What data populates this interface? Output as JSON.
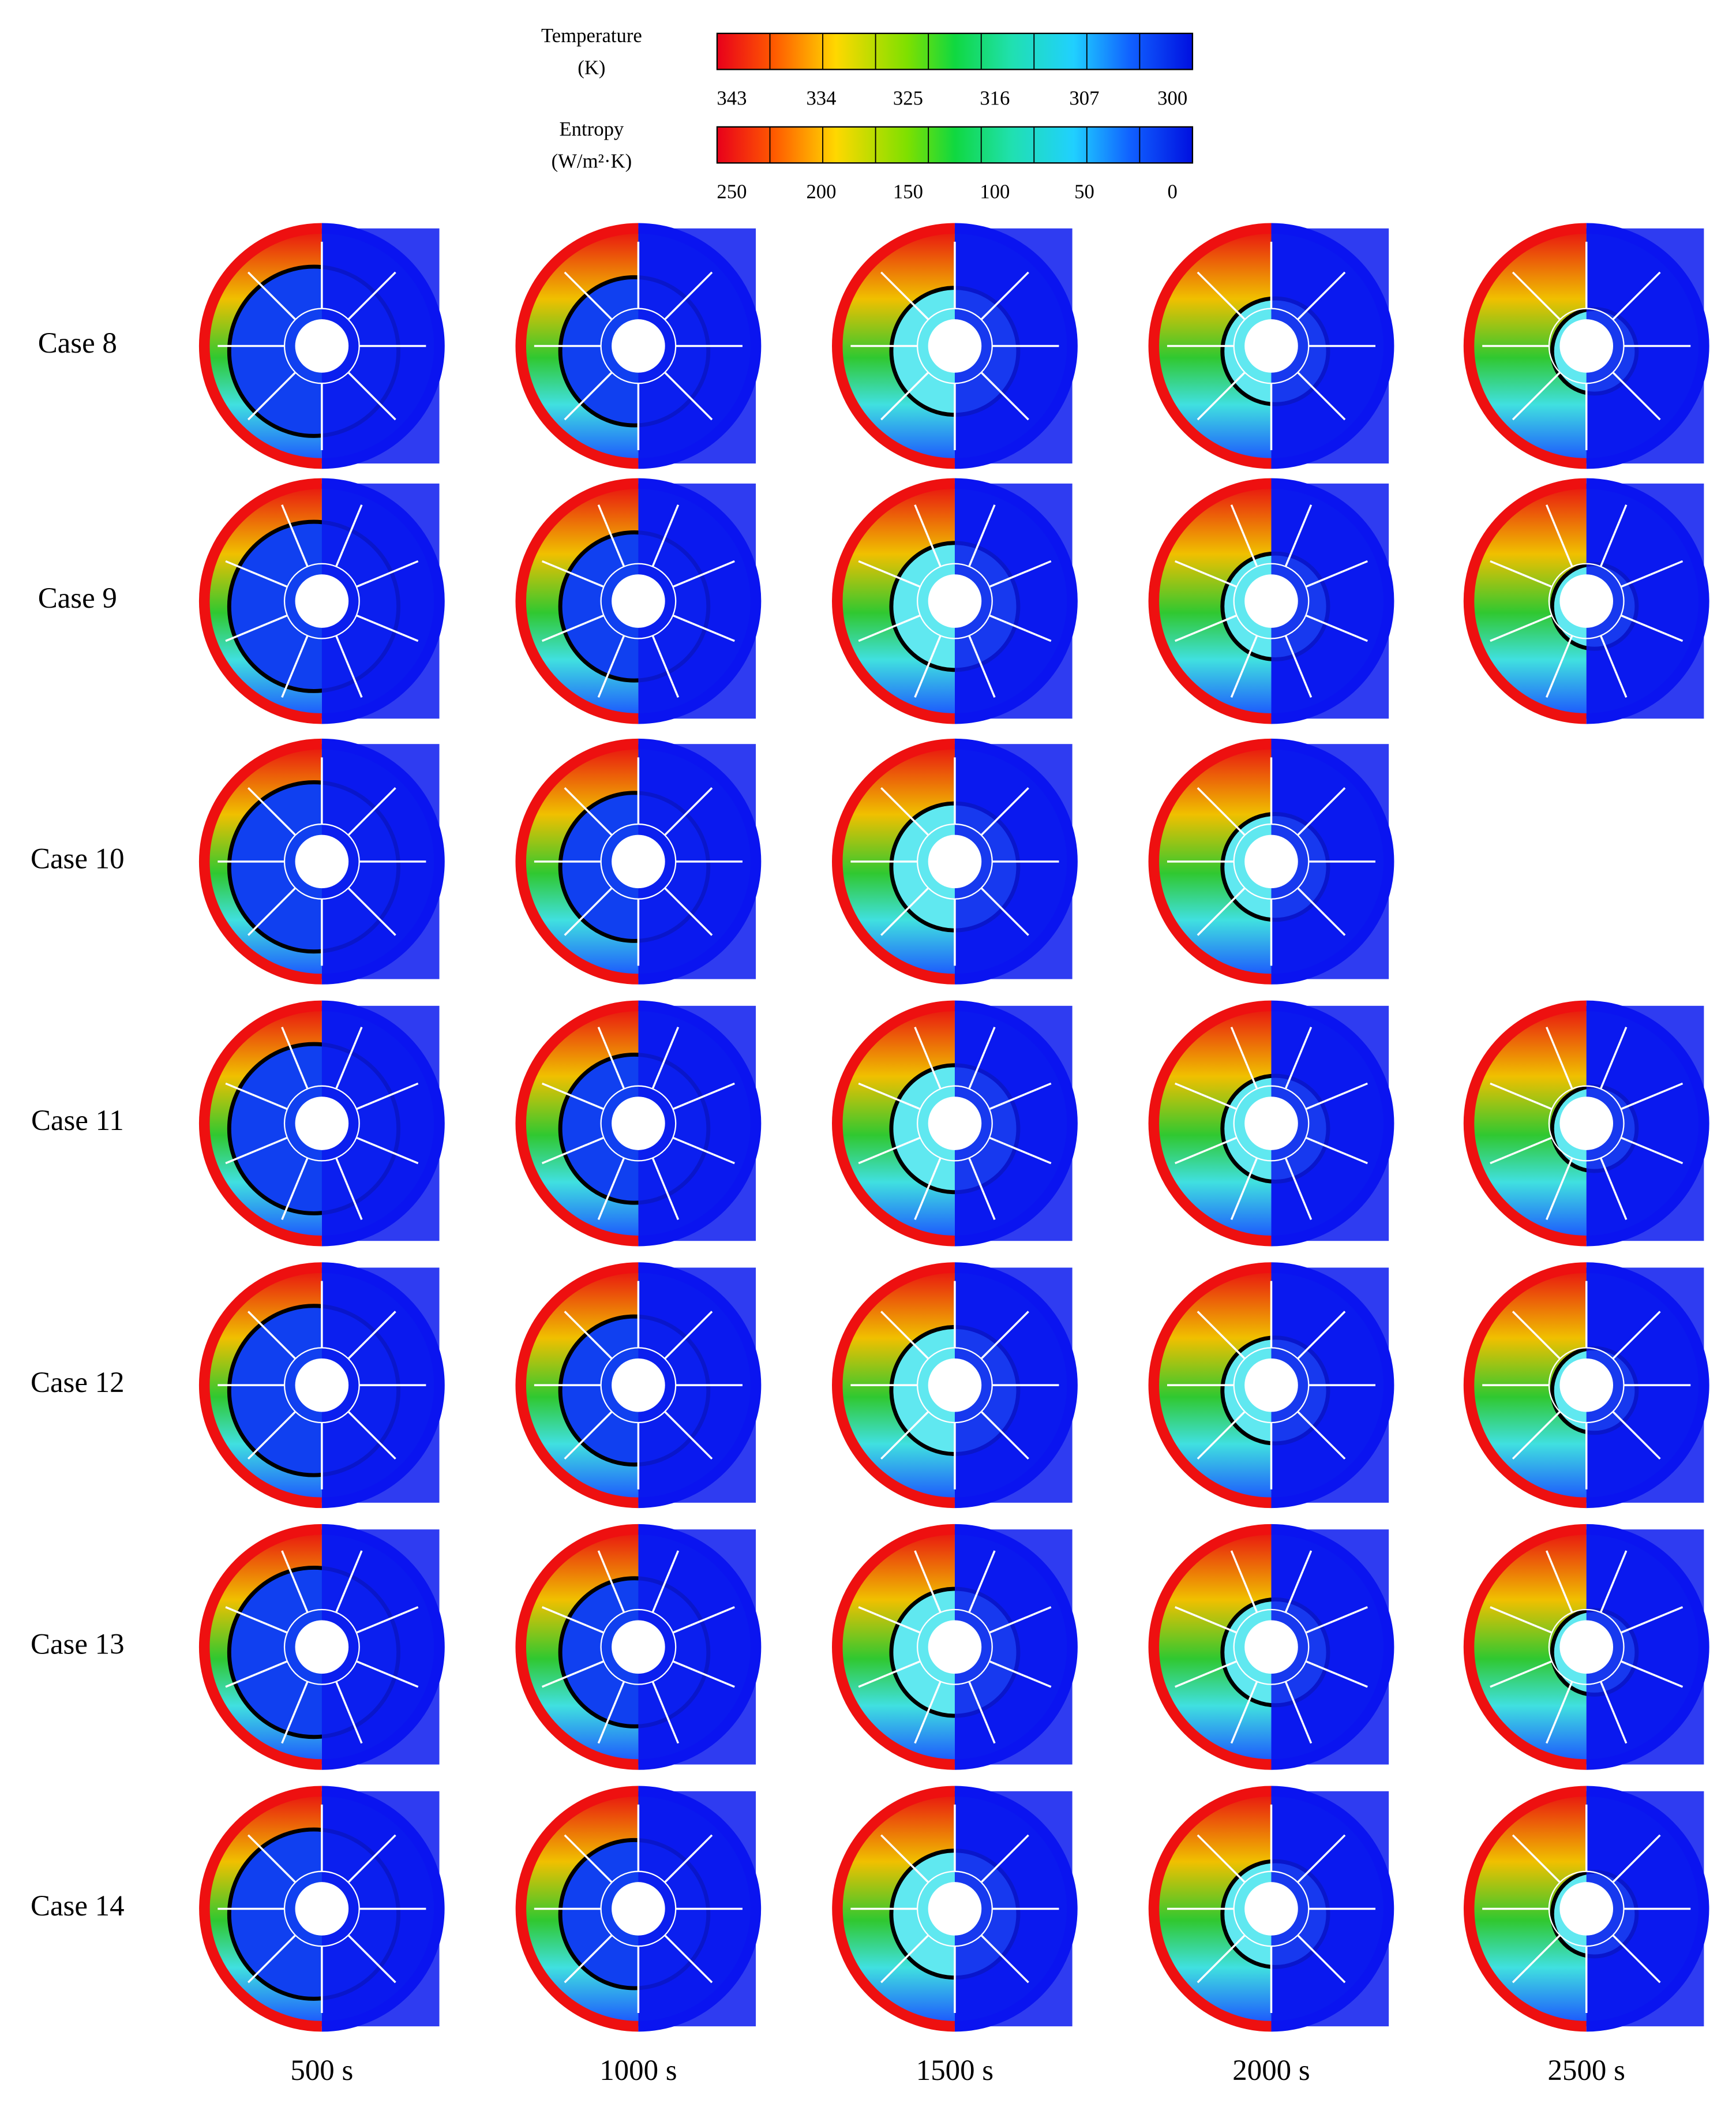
{
  "legend": {
    "temperature": {
      "title": "Temperature",
      "unit": "(K)",
      "ticks": [
        343,
        334,
        325,
        316,
        307,
        300
      ]
    },
    "entropy": {
      "title": "Entropy",
      "unit": "(W/m²·K)",
      "ticks": [
        250,
        200,
        150,
        100,
        50,
        0
      ]
    }
  },
  "rows": [
    "Case 8",
    "Case 9",
    "Case 10",
    "Case 11",
    "Case 12",
    "Case 13",
    "Case 14"
  ],
  "columns": [
    "500 s",
    "1000 s",
    "1500 s",
    "2000 s",
    "2500 s"
  ]
}
